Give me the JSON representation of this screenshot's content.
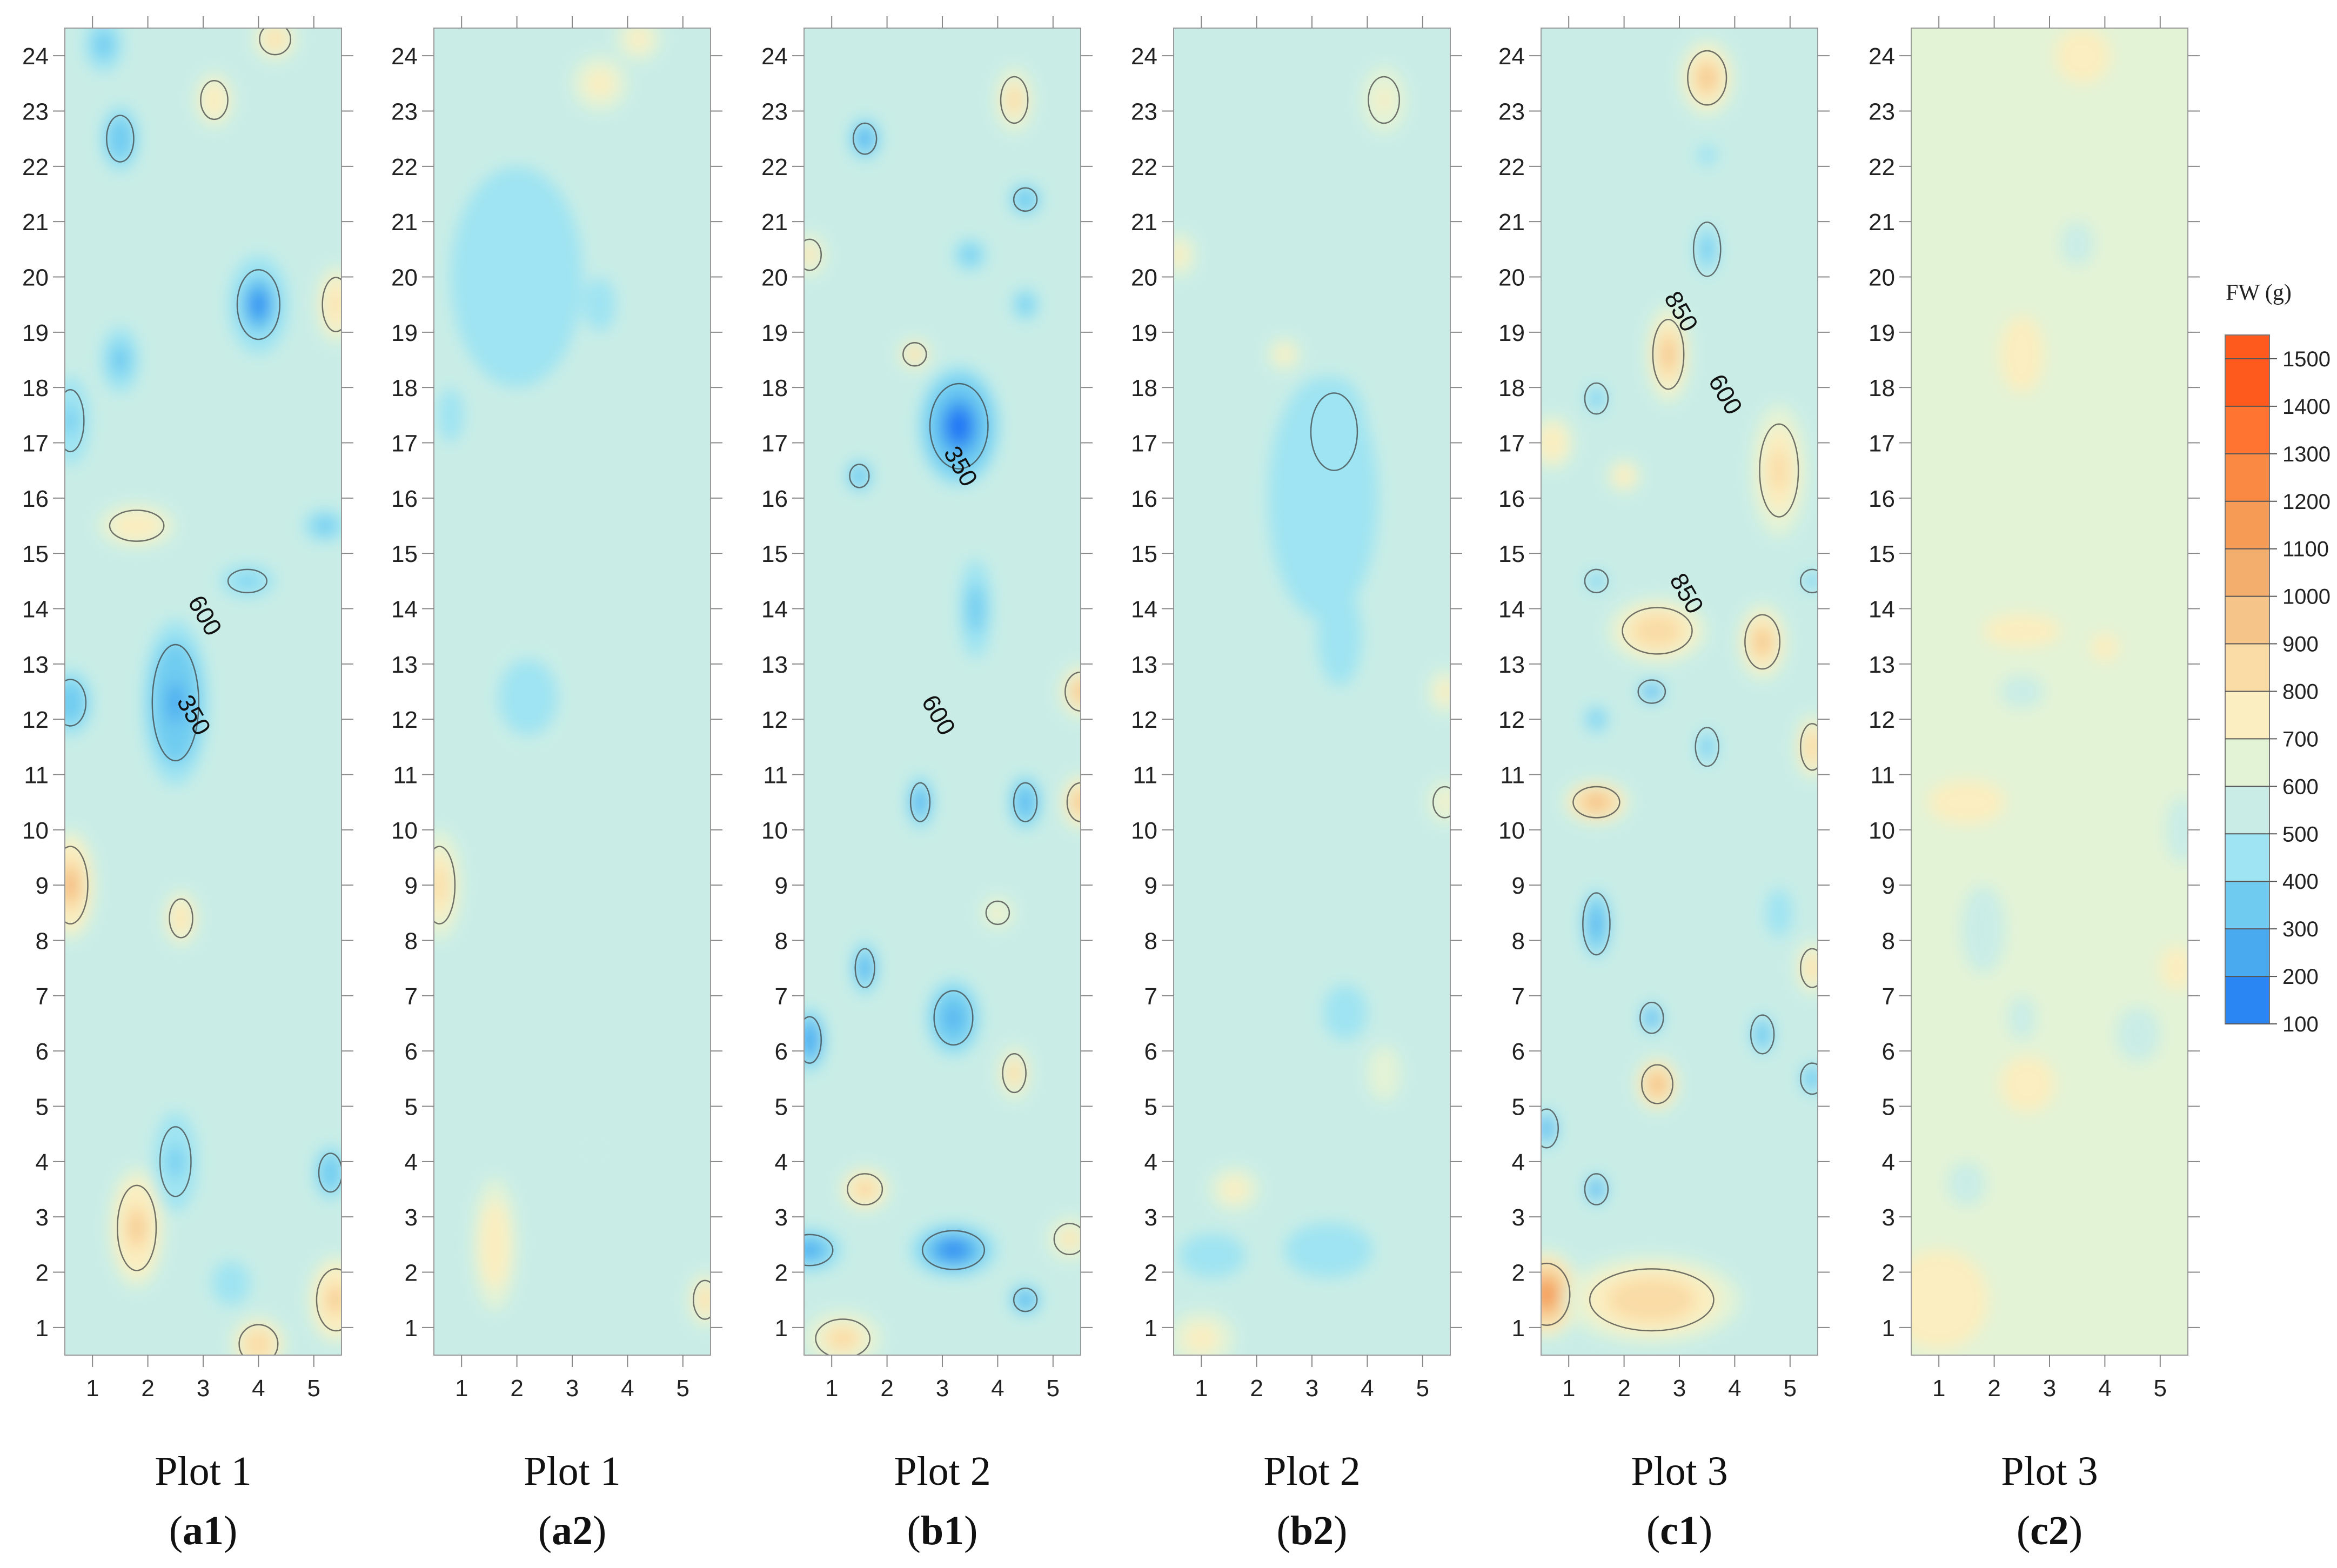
{
  "chart_data": {
    "type": "heatmap",
    "colorbar": {
      "title": "FW (g)",
      "ticks": [
        1500,
        1400,
        1300,
        1200,
        1100,
        1000,
        900,
        800,
        700,
        600,
        500,
        400,
        300,
        200,
        100
      ],
      "colors": [
        "#ff5a1e",
        "#ff7431",
        "#fa8a43",
        "#f59b56",
        "#f3ad6c",
        "#f5c488",
        "#f9dca6",
        "#fbeec0",
        "#e3f3d6",
        "#c9ede6",
        "#9fe4f2",
        "#6fccf0",
        "#4aaaf0",
        "#2a86f3",
        "#1268f6"
      ],
      "range": [
        100,
        1550
      ]
    },
    "x_ticks": [
      1,
      2,
      3,
      4,
      5
    ],
    "y_ticks": [
      1,
      2,
      3,
      4,
      5,
      6,
      7,
      8,
      9,
      10,
      11,
      12,
      13,
      14,
      15,
      16,
      17,
      18,
      19,
      20,
      21,
      22,
      23,
      24
    ],
    "xlim": [
      0.5,
      5.5
    ],
    "ylim": [
      0.5,
      24.5
    ],
    "panels": [
      {
        "id": "a1",
        "plot": "Plot 1",
        "base": 660,
        "contour_labels": [
          {
            "text": "600",
            "x": 2.9,
            "y": 13.8
          },
          {
            "text": "350",
            "x": 2.7,
            "y": 12.0
          }
        ],
        "features": [
          {
            "x": 4.0,
            "y": 19.5,
            "v": 300,
            "rx": 0.55,
            "ry": 0.9
          },
          {
            "x": 2.5,
            "y": 12.3,
            "v": 330,
            "rx": 0.6,
            "ry": 1.5
          },
          {
            "x": 1.5,
            "y": 22.5,
            "v": 420,
            "rx": 0.35,
            "ry": 0.6
          },
          {
            "x": 1.5,
            "y": 18.5,
            "v": 470,
            "rx": 0.35,
            "ry": 0.6
          },
          {
            "x": 0.6,
            "y": 17.4,
            "v": 430,
            "rx": 0.35,
            "ry": 0.8
          },
          {
            "x": 1.2,
            "y": 24.2,
            "v": 470,
            "rx": 0.35,
            "ry": 0.5
          },
          {
            "x": 0.6,
            "y": 9.0,
            "v": 1120,
            "rx": 0.45,
            "ry": 1.0
          },
          {
            "x": 1.8,
            "y": 2.8,
            "v": 1050,
            "rx": 0.5,
            "ry": 1.1
          },
          {
            "x": 4.0,
            "y": 0.7,
            "v": 1000,
            "rx": 0.5,
            "ry": 0.5
          },
          {
            "x": 5.4,
            "y": 1.5,
            "v": 1050,
            "rx": 0.5,
            "ry": 0.8
          },
          {
            "x": 2.6,
            "y": 8.4,
            "v": 980,
            "rx": 0.3,
            "ry": 0.5
          },
          {
            "x": 5.4,
            "y": 19.5,
            "v": 950,
            "rx": 0.35,
            "ry": 0.7
          },
          {
            "x": 4.3,
            "y": 24.3,
            "v": 920,
            "rx": 0.4,
            "ry": 0.4
          },
          {
            "x": 1.8,
            "y": 15.5,
            "v": 900,
            "rx": 0.7,
            "ry": 0.4
          },
          {
            "x": 2.5,
            "y": 4.0,
            "v": 450,
            "rx": 0.4,
            "ry": 0.9
          },
          {
            "x": 5.3,
            "y": 3.8,
            "v": 420,
            "rx": 0.3,
            "ry": 0.5
          },
          {
            "x": 3.8,
            "y": 14.5,
            "v": 450,
            "rx": 0.5,
            "ry": 0.3
          },
          {
            "x": 5.2,
            "y": 15.5,
            "v": 470,
            "rx": 0.4,
            "ry": 0.3
          },
          {
            "x": 0.6,
            "y": 12.3,
            "v": 420,
            "rx": 0.4,
            "ry": 0.6
          },
          {
            "x": 3.5,
            "y": 1.8,
            "v": 520,
            "rx": 0.35,
            "ry": 0.4
          },
          {
            "x": 3.2,
            "y": 23.2,
            "v": 880,
            "rx": 0.35,
            "ry": 0.5
          }
        ]
      },
      {
        "id": "a2",
        "plot": "Plot 1",
        "base": 700,
        "features": [
          {
            "x": 3.5,
            "y": 19.5,
            "v": 520,
            "rx": 0.6,
            "ry": 1.0
          },
          {
            "x": 2.2,
            "y": 12.4,
            "v": 520,
            "rx": 1.1,
            "ry": 1.4
          },
          {
            "x": 0.8,
            "y": 17.5,
            "v": 560,
            "rx": 0.5,
            "ry": 1.0
          },
          {
            "x": 2.0,
            "y": 20.0,
            "v": 600,
            "rx": 1.2,
            "ry": 2.0
          },
          {
            "x": 0.6,
            "y": 9.0,
            "v": 960,
            "rx": 0.4,
            "ry": 1.0
          },
          {
            "x": 1.6,
            "y": 2.5,
            "v": 900,
            "rx": 0.4,
            "ry": 1.2
          },
          {
            "x": 5.4,
            "y": 1.5,
            "v": 920,
            "rx": 0.3,
            "ry": 0.5
          },
          {
            "x": 3.5,
            "y": 23.5,
            "v": 860,
            "rx": 0.5,
            "ry": 0.5
          },
          {
            "x": 4.2,
            "y": 24.3,
            "v": 860,
            "rx": 0.4,
            "ry": 0.4
          },
          {
            "x": 3.4,
            "y": 4.2,
            "v": 630,
            "rx": 0.6,
            "ry": 0.6
          },
          {
            "x": 5.2,
            "y": 4.0,
            "v": 620,
            "rx": 0.3,
            "ry": 0.6
          }
        ]
      },
      {
        "id": "b1",
        "plot": "Plot 2",
        "base": 640,
        "contour_labels": [
          {
            "text": "350",
            "x": 3.2,
            "y": 16.5
          },
          {
            "text": "600",
            "x": 2.8,
            "y": 12.0
          }
        ],
        "features": [
          {
            "x": 3.3,
            "y": 17.3,
            "v": 200,
            "rx": 0.75,
            "ry": 1.1
          },
          {
            "x": 3.2,
            "y": 2.4,
            "v": 300,
            "rx": 0.8,
            "ry": 0.5
          },
          {
            "x": 0.6,
            "y": 2.4,
            "v": 380,
            "rx": 0.6,
            "ry": 0.4
          },
          {
            "x": 3.2,
            "y": 6.6,
            "v": 330,
            "rx": 0.5,
            "ry": 0.7
          },
          {
            "x": 0.6,
            "y": 6.2,
            "v": 320,
            "rx": 0.3,
            "ry": 0.6
          },
          {
            "x": 1.6,
            "y": 7.5,
            "v": 380,
            "rx": 0.25,
            "ry": 0.5
          },
          {
            "x": 4.5,
            "y": 10.5,
            "v": 330,
            "rx": 0.3,
            "ry": 0.5
          },
          {
            "x": 2.6,
            "y": 10.5,
            "v": 400,
            "rx": 0.25,
            "ry": 0.5
          },
          {
            "x": 1.6,
            "y": 22.5,
            "v": 400,
            "rx": 0.3,
            "ry": 0.4
          },
          {
            "x": 3.6,
            "y": 14.0,
            "v": 450,
            "rx": 0.3,
            "ry": 0.9
          },
          {
            "x": 4.5,
            "y": 21.4,
            "v": 430,
            "rx": 0.3,
            "ry": 0.3
          },
          {
            "x": 3.5,
            "y": 20.4,
            "v": 450,
            "rx": 0.3,
            "ry": 0.3
          },
          {
            "x": 4.5,
            "y": 19.5,
            "v": 450,
            "rx": 0.25,
            "ry": 0.3
          },
          {
            "x": 4.5,
            "y": 1.5,
            "v": 380,
            "rx": 0.3,
            "ry": 0.3
          },
          {
            "x": 1.5,
            "y": 16.4,
            "v": 430,
            "rx": 0.25,
            "ry": 0.3
          },
          {
            "x": 4.3,
            "y": 23.2,
            "v": 1000,
            "rx": 0.35,
            "ry": 0.6
          },
          {
            "x": 5.5,
            "y": 12.5,
            "v": 1100,
            "rx": 0.4,
            "ry": 0.5
          },
          {
            "x": 5.5,
            "y": 10.5,
            "v": 1150,
            "rx": 0.35,
            "ry": 0.5
          },
          {
            "x": 1.6,
            "y": 3.5,
            "v": 1050,
            "rx": 0.45,
            "ry": 0.4
          },
          {
            "x": 1.2,
            "y": 0.8,
            "v": 1000,
            "rx": 0.7,
            "ry": 0.5
          },
          {
            "x": 2.5,
            "y": 18.6,
            "v": 1000,
            "rx": 0.3,
            "ry": 0.3
          },
          {
            "x": 4.3,
            "y": 5.6,
            "v": 1000,
            "rx": 0.3,
            "ry": 0.5
          },
          {
            "x": 0.6,
            "y": 20.4,
            "v": 950,
            "rx": 0.3,
            "ry": 0.4
          },
          {
            "x": 5.3,
            "y": 2.6,
            "v": 950,
            "rx": 0.4,
            "ry": 0.4
          },
          {
            "x": 4.0,
            "y": 8.5,
            "v": 880,
            "rx": 0.3,
            "ry": 0.3
          }
        ]
      },
      {
        "id": "b2",
        "plot": "Plot 2",
        "base": 650,
        "features": [
          {
            "x": 3.4,
            "y": 17.2,
            "v": 380,
            "rx": 0.6,
            "ry": 1.0
          },
          {
            "x": 3.2,
            "y": 16.0,
            "v": 540,
            "rx": 1.0,
            "ry": 2.2
          },
          {
            "x": 3.3,
            "y": 2.4,
            "v": 530,
            "rx": 0.8,
            "ry": 0.5
          },
          {
            "x": 1.2,
            "y": 2.3,
            "v": 560,
            "rx": 0.6,
            "ry": 0.4
          },
          {
            "x": 3.6,
            "y": 6.7,
            "v": 540,
            "rx": 0.4,
            "ry": 0.5
          },
          {
            "x": 3.5,
            "y": 13.5,
            "v": 580,
            "rx": 0.4,
            "ry": 0.9
          },
          {
            "x": 2.5,
            "y": 18.6,
            "v": 820,
            "rx": 0.3,
            "ry": 0.3
          },
          {
            "x": 0.6,
            "y": 20.4,
            "v": 820,
            "rx": 0.3,
            "ry": 0.4
          },
          {
            "x": 4.3,
            "y": 23.2,
            "v": 860,
            "rx": 0.4,
            "ry": 0.6
          },
          {
            "x": 1.6,
            "y": 3.5,
            "v": 820,
            "rx": 0.45,
            "ry": 0.4
          },
          {
            "x": 5.4,
            "y": 12.5,
            "v": 840,
            "rx": 0.3,
            "ry": 0.4
          },
          {
            "x": 5.4,
            "y": 10.5,
            "v": 860,
            "rx": 0.3,
            "ry": 0.4
          },
          {
            "x": 4.3,
            "y": 5.6,
            "v": 800,
            "rx": 0.3,
            "ry": 0.5
          },
          {
            "x": 1.0,
            "y": 0.8,
            "v": 820,
            "rx": 0.6,
            "ry": 0.5
          }
        ]
      },
      {
        "id": "c1",
        "plot": "Plot 3",
        "base": 700,
        "contour_labels": [
          {
            "text": "850",
            "x": 2.9,
            "y": 19.3
          },
          {
            "text": "600",
            "x": 3.7,
            "y": 17.8
          },
          {
            "text": "850",
            "x": 3.0,
            "y": 14.2
          }
        ],
        "features": [
          {
            "x": 3.5,
            "y": 23.6,
            "v": 1050,
            "rx": 0.5,
            "ry": 0.7
          },
          {
            "x": 2.8,
            "y": 18.6,
            "v": 1050,
            "rx": 0.4,
            "ry": 0.9
          },
          {
            "x": 2.6,
            "y": 13.6,
            "v": 1000,
            "rx": 0.9,
            "ry": 0.6
          },
          {
            "x": 4.5,
            "y": 13.4,
            "v": 1050,
            "rx": 0.45,
            "ry": 0.7
          },
          {
            "x": 1.5,
            "y": 10.5,
            "v": 1150,
            "rx": 0.6,
            "ry": 0.4
          },
          {
            "x": 2.6,
            "y": 5.4,
            "v": 1150,
            "rx": 0.4,
            "ry": 0.5
          },
          {
            "x": 0.6,
            "y": 1.6,
            "v": 1300,
            "rx": 0.6,
            "ry": 0.8
          },
          {
            "x": 2.5,
            "y": 1.5,
            "v": 1000,
            "rx": 1.6,
            "ry": 0.8
          },
          {
            "x": 5.4,
            "y": 11.5,
            "v": 1000,
            "rx": 0.3,
            "ry": 0.6
          },
          {
            "x": 4.8,
            "y": 16.5,
            "v": 950,
            "rx": 0.5,
            "ry": 1.2
          },
          {
            "x": 5.4,
            "y": 7.5,
            "v": 950,
            "rx": 0.3,
            "ry": 0.5
          },
          {
            "x": 0.7,
            "y": 17.0,
            "v": 900,
            "rx": 0.4,
            "ry": 0.5
          },
          {
            "x": 2.0,
            "y": 16.4,
            "v": 900,
            "rx": 0.3,
            "ry": 0.3
          },
          {
            "x": 1.5,
            "y": 8.3,
            "v": 330,
            "rx": 0.35,
            "ry": 0.8
          },
          {
            "x": 2.5,
            "y": 12.5,
            "v": 380,
            "rx": 0.35,
            "ry": 0.3
          },
          {
            "x": 2.5,
            "y": 6.6,
            "v": 380,
            "rx": 0.3,
            "ry": 0.4
          },
          {
            "x": 4.5,
            "y": 6.3,
            "v": 420,
            "rx": 0.3,
            "ry": 0.5
          },
          {
            "x": 5.4,
            "y": 5.5,
            "v": 420,
            "rx": 0.3,
            "ry": 0.4
          },
          {
            "x": 0.6,
            "y": 4.6,
            "v": 380,
            "rx": 0.3,
            "ry": 0.5
          },
          {
            "x": 1.5,
            "y": 3.5,
            "v": 400,
            "rx": 0.3,
            "ry": 0.4
          },
          {
            "x": 3.5,
            "y": 20.5,
            "v": 480,
            "rx": 0.35,
            "ry": 0.7
          },
          {
            "x": 3.5,
            "y": 22.2,
            "v": 520,
            "rx": 0.4,
            "ry": 0.4
          },
          {
            "x": 3.5,
            "y": 11.5,
            "v": 480,
            "rx": 0.3,
            "ry": 0.5
          },
          {
            "x": 1.5,
            "y": 14.5,
            "v": 480,
            "rx": 0.3,
            "ry": 0.3
          },
          {
            "x": 5.4,
            "y": 14.5,
            "v": 470,
            "rx": 0.3,
            "ry": 0.3
          },
          {
            "x": 1.5,
            "y": 12.0,
            "v": 500,
            "rx": 0.35,
            "ry": 0.4
          },
          {
            "x": 1.5,
            "y": 17.8,
            "v": 480,
            "rx": 0.3,
            "ry": 0.4
          },
          {
            "x": 4.8,
            "y": 8.5,
            "v": 560,
            "rx": 0.5,
            "ry": 0.9
          }
        ]
      },
      {
        "id": "c2",
        "plot": "Plot 3",
        "base": 740,
        "features": [
          {
            "x": 3.6,
            "y": 24.0,
            "v": 880,
            "rx": 0.5,
            "ry": 0.5
          },
          {
            "x": 2.5,
            "y": 18.6,
            "v": 880,
            "rx": 0.4,
            "ry": 0.7
          },
          {
            "x": 1.5,
            "y": 10.5,
            "v": 880,
            "rx": 0.7,
            "ry": 0.4
          },
          {
            "x": 2.6,
            "y": 5.4,
            "v": 880,
            "rx": 0.5,
            "ry": 0.5
          },
          {
            "x": 4.0,
            "y": 13.3,
            "v": 860,
            "rx": 0.5,
            "ry": 0.5
          },
          {
            "x": 1.0,
            "y": 1.5,
            "v": 880,
            "rx": 0.9,
            "ry": 0.9
          },
          {
            "x": 2.5,
            "y": 13.6,
            "v": 820,
            "rx": 0.7,
            "ry": 0.3
          },
          {
            "x": 5.3,
            "y": 7.5,
            "v": 830,
            "rx": 0.3,
            "ry": 0.4
          },
          {
            "x": 3.5,
            "y": 20.6,
            "v": 620,
            "rx": 0.3,
            "ry": 0.4
          },
          {
            "x": 1.8,
            "y": 8.2,
            "v": 620,
            "rx": 0.4,
            "ry": 0.8
          },
          {
            "x": 4.6,
            "y": 6.3,
            "v": 630,
            "rx": 0.4,
            "ry": 0.5
          },
          {
            "x": 2.5,
            "y": 12.5,
            "v": 640,
            "rx": 0.4,
            "ry": 0.3
          },
          {
            "x": 1.5,
            "y": 3.6,
            "v": 640,
            "rx": 0.35,
            "ry": 0.4
          },
          {
            "x": 2.5,
            "y": 6.6,
            "v": 640,
            "rx": 0.25,
            "ry": 0.4
          },
          {
            "x": 5.4,
            "y": 10.0,
            "v": 640,
            "rx": 0.3,
            "ry": 0.6
          }
        ]
      }
    ]
  },
  "captions": [
    {
      "plot": "Plot 1",
      "id": "a1",
      "open": "(",
      "close": ")"
    },
    {
      "plot": "Plot 1",
      "id": "a2",
      "open": "(",
      "close": ")"
    },
    {
      "plot": "Plot 2",
      "id": "b1",
      "open": "(",
      "close": ")"
    },
    {
      "plot": "Plot 2",
      "id": "b2",
      "open": "(",
      "close": ")"
    },
    {
      "plot": "Plot 3",
      "id": "c1",
      "open": "(",
      "close": ")"
    },
    {
      "plot": "Plot 3",
      "id": "c2",
      "open": "(",
      "close": ")"
    }
  ]
}
